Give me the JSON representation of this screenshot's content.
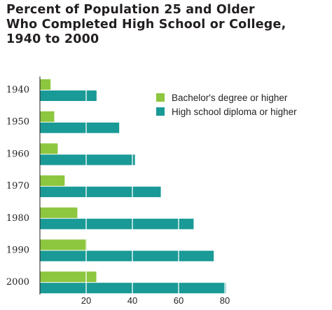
{
  "chart_data": {
    "type": "bar",
    "orientation": "horizontal",
    "title_lines": [
      "Percent of Population 25 and Older",
      "Who Completed High School or College,",
      "1940 to 2000"
    ],
    "categories": [
      "1940",
      "1950",
      "1960",
      "1970",
      "1980",
      "1990",
      "2000"
    ],
    "series": [
      {
        "name": "Bachelor's degree or higher",
        "color": "#8dc63f",
        "values": [
          4.6,
          6.2,
          7.7,
          10.7,
          16.2,
          20.3,
          24.4
        ]
      },
      {
        "name": "High school diploma or higher",
        "color": "#1a9a96",
        "values": [
          24.5,
          34.3,
          41.1,
          52.3,
          66.5,
          75.2,
          80.4
        ]
      }
    ],
    "x_ticks": [
      "20",
      "40",
      "60",
      "80"
    ],
    "xlim": [
      0,
      80
    ],
    "grid": "white vertical gridlines over bars",
    "legend_position": "top-right"
  }
}
